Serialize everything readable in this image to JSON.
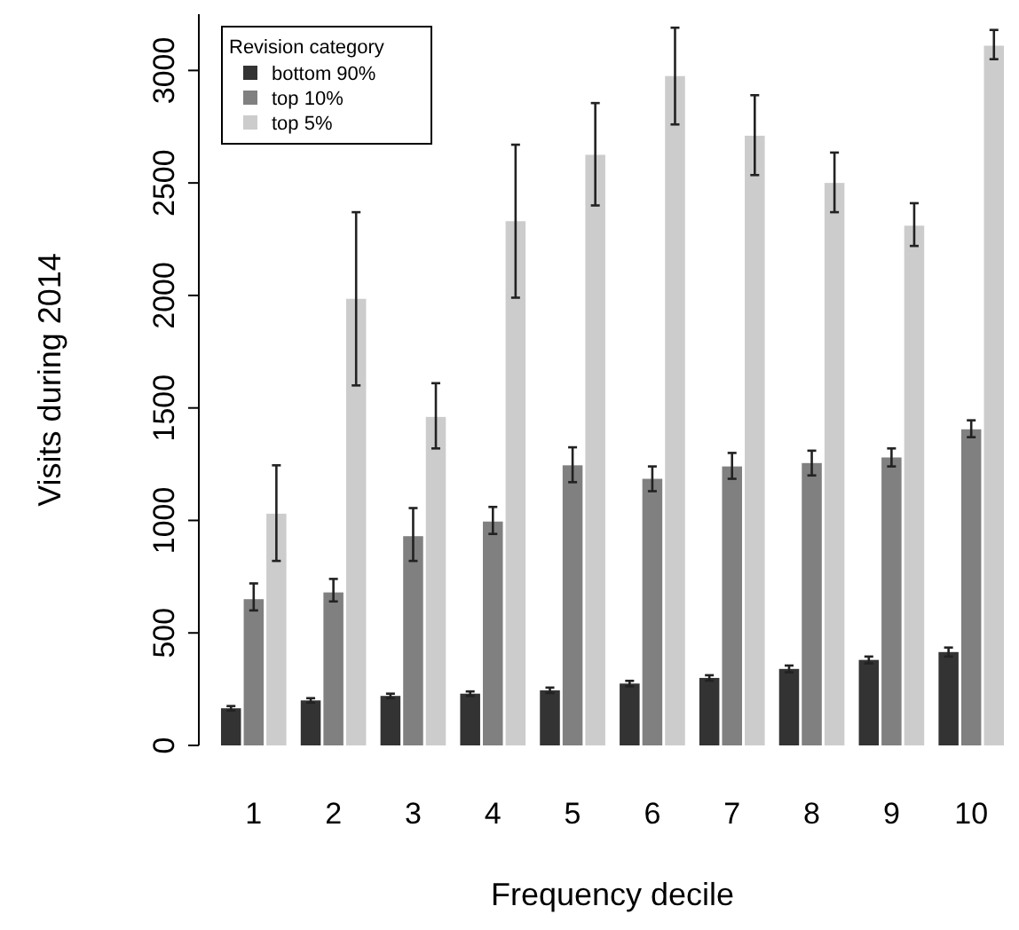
{
  "chart_data": {
    "type": "bar",
    "xlabel": "Frequency decile",
    "ylabel": "Visits during 2014",
    "legend_title": "Revision category",
    "legend": "top left",
    "categories": [
      "1",
      "2",
      "3",
      "4",
      "5",
      "6",
      "7",
      "8",
      "9",
      "10"
    ],
    "ylim": [
      0,
      3250
    ],
    "yticks": [
      0,
      500,
      1000,
      1500,
      2000,
      2500,
      3000
    ],
    "series": [
      {
        "name": "bottom 90%",
        "color": "#333333",
        "values": [
          165,
          200,
          220,
          230,
          245,
          275,
          300,
          340,
          380,
          415
        ],
        "errors": [
          10,
          10,
          10,
          10,
          12,
          12,
          12,
          15,
          15,
          20
        ]
      },
      {
        "name": "top 10%",
        "color": "#808080",
        "values": [
          650,
          680,
          930,
          995,
          1245,
          1185,
          1240,
          1255,
          1280,
          1405
        ],
        "errors": [
          [
            600,
            720
          ],
          [
            640,
            740
          ],
          [
            820,
            1055
          ],
          [
            940,
            1060
          ],
          [
            1170,
            1325
          ],
          [
            1130,
            1240
          ],
          [
            1185,
            1300
          ],
          [
            1200,
            1310
          ],
          [
            1240,
            1320
          ],
          [
            1370,
            1445
          ]
        ]
      },
      {
        "name": "top 5%",
        "color": "#cccccc",
        "values": [
          1030,
          1985,
          1460,
          2330,
          2625,
          2975,
          2710,
          2500,
          2310,
          3110
        ],
        "errors": [
          [
            820,
            1245
          ],
          [
            1600,
            2370
          ],
          [
            1320,
            1610
          ],
          [
            1990,
            2670
          ],
          [
            2400,
            2855
          ],
          [
            2760,
            3190
          ],
          [
            2535,
            2890
          ],
          [
            2370,
            2635
          ],
          [
            2220,
            2410
          ],
          [
            3050,
            3180
          ]
        ]
      }
    ]
  }
}
